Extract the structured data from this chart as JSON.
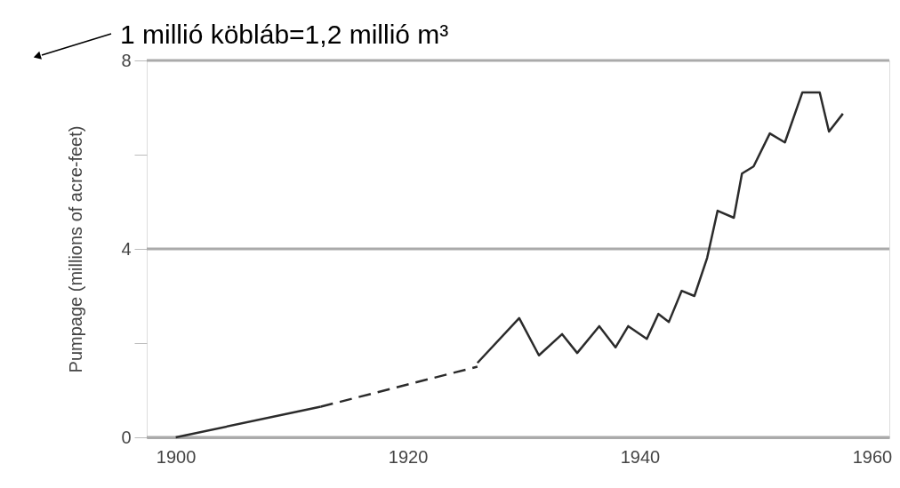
{
  "chart_data": {
    "type": "line",
    "ylabel": "Pumpage (millions of acre-feet)",
    "annotations": [
      "1 millió köbláb=1,2 millió m³"
    ],
    "xlim": [
      1897.5,
      1961.5
    ],
    "xticks": [
      1900,
      1920,
      1940,
      1960
    ],
    "ylim": [
      0,
      8
    ],
    "yticks": [
      0,
      {
        "value": 2,
        "label": null
      },
      4,
      {
        "value": 6,
        "label": null
      },
      8
    ],
    "grid": "y",
    "series": [
      {
        "color": "#2b2b2b",
        "line_style": "solid",
        "x": [
          1900,
          1912.5
        ],
        "values": [
          0,
          0.65
        ]
      },
      {
        "color": "#2b2b2b",
        "line_style": "dashed",
        "x": [
          1912.5,
          1926
        ],
        "values": [
          0.65,
          1.5
        ]
      },
      {
        "color": "#2b2b2b",
        "line_style": "solid",
        "x": [
          1926,
          1929.6,
          1931.3,
          1933.3,
          1934.6,
          1936.5,
          1937.9,
          1939,
          1940.6,
          1941.6,
          1942.5,
          1943.6,
          1944.7,
          1945.8,
          1946.7,
          1948.1,
          1948.8,
          1949.8,
          1951.2,
          1952.5,
          1954,
          1955.5,
          1956.3,
          1957.5
        ],
        "values": [
          1.58,
          2.53,
          1.74,
          2.19,
          1.79,
          2.36,
          1.91,
          2.36,
          2.09,
          2.62,
          2.45,
          3.11,
          3.0,
          3.81,
          4.81,
          4.66,
          5.6,
          5.75,
          6.45,
          6.26,
          7.32,
          7.32,
          6.49,
          6.87
        ]
      }
    ]
  }
}
